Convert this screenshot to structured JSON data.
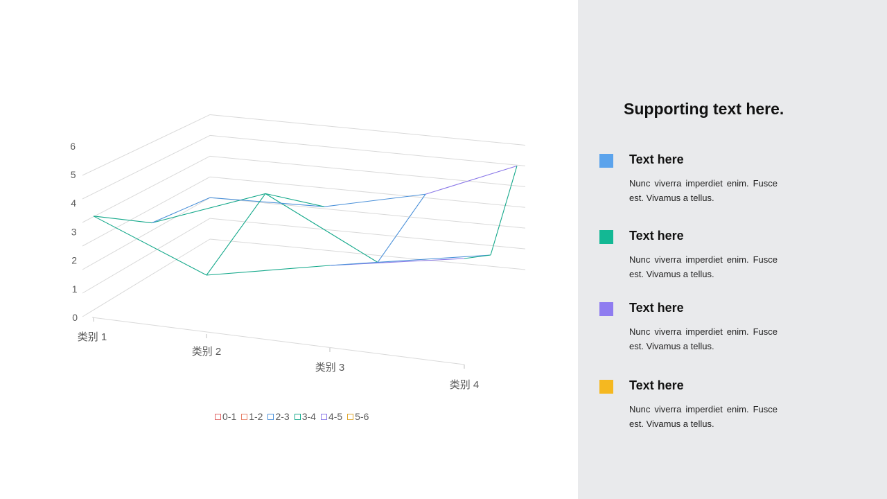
{
  "chart_data": {
    "type": "surface-3d-wireframe",
    "categories": [
      "类别 1",
      "类别 2",
      "类别 3",
      "类别 4"
    ],
    "series_depth": 3,
    "y_ticks": [
      "0",
      "1",
      "2",
      "3",
      "4",
      "5",
      "6"
    ],
    "ylim": [
      0,
      6
    ],
    "grid": true,
    "legend_position": "bottom",
    "legend_entries": [
      {
        "label": "0-1",
        "color": "#e06666"
      },
      {
        "label": "1-2",
        "color": "#e8836a"
      },
      {
        "label": "2-3",
        "color": "#4a90d9"
      },
      {
        "label": "3-4",
        "color": "#13a88a"
      },
      {
        "label": "4-5",
        "color": "#8b79e8"
      },
      {
        "label": "5-6",
        "color": "#e0a82e"
      }
    ],
    "band_colors": {
      "2-3": "#4a90d9",
      "3-4": "#13a88a",
      "4-5": "#8b79e8",
      "5-6": "#e0a82e"
    },
    "series": [
      {
        "values": [
          4.3,
          2.5,
          3.5,
          4.5
        ]
      },
      {
        "values": [
          2.5,
          4.4,
          1.8,
          2.8
        ]
      },
      {
        "values": [
          2.0,
          2.0,
          3.0,
          5.0
        ]
      }
    ]
  },
  "side": {
    "title": "Supporting text here.",
    "items": [
      {
        "heading": "Text here",
        "body": "Nunc viverra imperdiet enim. Fusce est. Vivamus a tellus.",
        "color": "#5ba3ec"
      },
      {
        "heading": "Text here",
        "body": "Nunc viverra imperdiet enim. Fusce est. Vivamus a tellus.",
        "color": "#13b894"
      },
      {
        "heading": "Text here",
        "body": "Nunc viverra imperdiet enim. Fusce est. Vivamus a tellus.",
        "color": "#8f7cf0"
      },
      {
        "heading": "Text here",
        "body": "Nunc viverra imperdiet enim. Fusce est. Vivamus a tellus.",
        "color": "#f5b820"
      }
    ]
  }
}
